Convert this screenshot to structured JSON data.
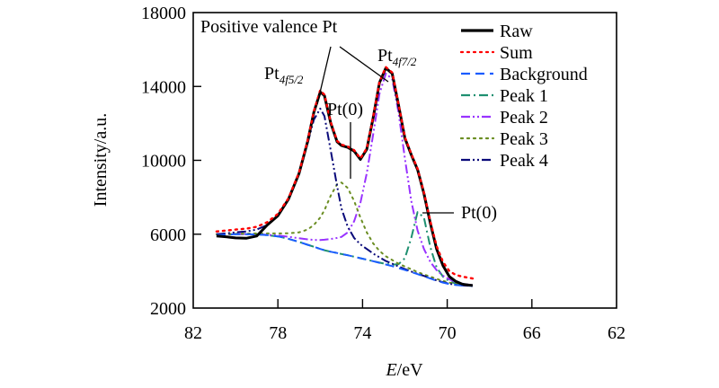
{
  "chart_data": {
    "type": "line",
    "title": "",
    "xlabel_italic": "E",
    "xlabel_rest": "/eV",
    "ylabel": "Intensity/a.u.",
    "xlim": [
      82,
      62
    ],
    "ylim": [
      2000,
      18000
    ],
    "x_ticks": [
      82,
      78,
      74,
      70,
      66,
      62
    ],
    "y_ticks": [
      2000,
      6000,
      10000,
      14000,
      18000
    ],
    "x_reversed": true,
    "grid": false,
    "legend_position": "top-right",
    "x": [
      80.9,
      80.4,
      80.0,
      79.5,
      79.0,
      78.5,
      78.0,
      77.5,
      77.0,
      76.6,
      76.3,
      76.0,
      75.8,
      75.5,
      75.2,
      75.0,
      74.7,
      74.4,
      74.1,
      73.8,
      73.5,
      73.2,
      72.9,
      72.6,
      72.3,
      72.0,
      71.7,
      71.4,
      71.1,
      70.8,
      70.5,
      70.2,
      69.9,
      69.6,
      69.3,
      69.0,
      68.8
    ],
    "series": [
      {
        "name": "Raw",
        "color": "#000000",
        "style": "solid",
        "values": [
          5900,
          5850,
          5800,
          5780,
          5900,
          6500,
          7000,
          7900,
          9300,
          11000,
          12600,
          13700,
          13500,
          12000,
          11000,
          10800,
          10700,
          10500,
          10050,
          10600,
          12300,
          14200,
          15000,
          14700,
          13000,
          11200,
          10300,
          9500,
          8200,
          6600,
          5200,
          4300,
          3700,
          3450,
          3300,
          3250,
          3220
        ]
      },
      {
        "name": "Sum",
        "color": "#ff0000",
        "style": "dotted",
        "values": [
          6150,
          6200,
          6250,
          6300,
          6400,
          6650,
          7100,
          7950,
          9350,
          11050,
          12650,
          13800,
          13550,
          12050,
          11050,
          10850,
          10750,
          10550,
          10100,
          10650,
          12350,
          14250,
          15050,
          14750,
          13050,
          11250,
          10350,
          9550,
          8250,
          6700,
          5350,
          4500,
          4000,
          3800,
          3700,
          3650,
          3600
        ]
      },
      {
        "name": "Background",
        "color": "#1a5cff",
        "style": "dashed",
        "values": [
          5950,
          5980,
          6000,
          6000,
          5990,
          5950,
          5880,
          5750,
          5580,
          5430,
          5320,
          5200,
          5130,
          5050,
          4980,
          4930,
          4860,
          4780,
          4700,
          4620,
          4540,
          4450,
          4360,
          4270,
          4170,
          4060,
          3950,
          3840,
          3720,
          3600,
          3480,
          3380,
          3300,
          3250,
          3220,
          3200,
          3200
        ]
      },
      {
        "name": "Peak 1",
        "color": "#1e9070",
        "style": "dashdot",
        "values": [
          5950,
          5980,
          6000,
          6000,
          5990,
          5950,
          5880,
          5750,
          5580,
          5430,
          5320,
          5200,
          5130,
          5050,
          4980,
          4930,
          4860,
          4780,
          4700,
          4620,
          4540,
          4460,
          4390,
          4350,
          4380,
          4700,
          5800,
          7200,
          6900,
          5300,
          4200,
          3700,
          3450,
          3330,
          3260,
          3220,
          3210
        ]
      },
      {
        "name": "Peak 2",
        "color": "#9933ff",
        "style": "dashdotdot",
        "values": [
          6000,
          6000,
          6010,
          6010,
          6000,
          5970,
          5930,
          5860,
          5780,
          5720,
          5690,
          5680,
          5700,
          5740,
          5800,
          5850,
          6100,
          6700,
          7700,
          9300,
          11400,
          13600,
          14700,
          14400,
          12600,
          10100,
          7800,
          6200,
          5200,
          4500,
          4050,
          3750,
          3550,
          3420,
          3330,
          3270,
          3240
        ]
      },
      {
        "name": "Peak 3",
        "color": "#6b8e23",
        "style": "dotted",
        "values": [
          6000,
          6010,
          6020,
          6030,
          6040,
          6040,
          6040,
          6050,
          6100,
          6250,
          6500,
          6900,
          7300,
          8100,
          8700,
          8800,
          8500,
          7800,
          6900,
          6100,
          5500,
          5100,
          4800,
          4600,
          4400,
          4250,
          4100,
          3950,
          3820,
          3700,
          3580,
          3470,
          3380,
          3310,
          3260,
          3230,
          3210
        ]
      },
      {
        "name": "Peak 4",
        "color": "#0a0a7a",
        "style": "dashdotdot",
        "values": [
          6000,
          6050,
          6100,
          6150,
          6250,
          6500,
          7000,
          7900,
          9300,
          10900,
          12200,
          12800,
          12400,
          10500,
          8600,
          7400,
          6400,
          5800,
          5450,
          5200,
          4950,
          4750,
          4550,
          4400,
          4250,
          4110,
          3980,
          3860,
          3740,
          3620,
          3500,
          3400,
          3320,
          3260,
          3230,
          3210,
          3200
        ]
      }
    ],
    "annotations": [
      {
        "text": "Positive valence Pt",
        "target": "both Pt 4f peaks"
      },
      {
        "text": "Pt",
        "sub": "4f5/2",
        "x": 75.9,
        "y": 13800
      },
      {
        "text": "Pt",
        "sub": "4f7/2",
        "x": 72.6,
        "y": 15000
      },
      {
        "text": "Pt(0)",
        "x": 74.85,
        "y": 8800
      },
      {
        "text": "Pt(0)",
        "x": 71.4,
        "y": 7300
      }
    ]
  },
  "labels": {
    "positive_valence": "Positive valence Pt",
    "pt": "Pt",
    "sub_52": "4f",
    "sub_52_frac": "5/2",
    "sub_72": "4f",
    "sub_72_frac": "7/2",
    "pt0": "Pt(0)"
  }
}
